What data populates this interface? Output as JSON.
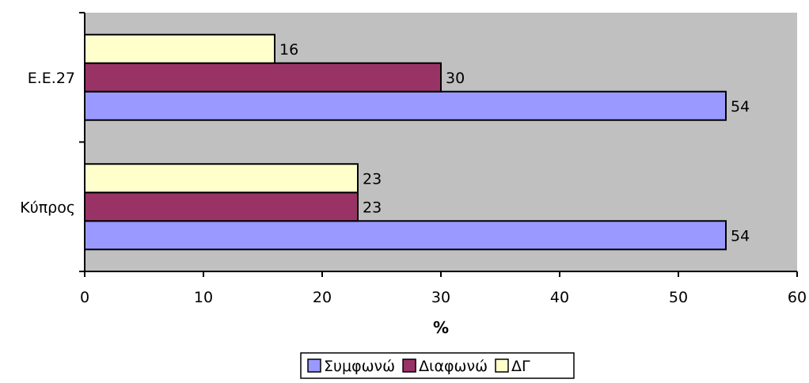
{
  "chart_data": {
    "type": "bar",
    "orientation": "horizontal",
    "categories": [
      "Κύπρος",
      "Ε.Ε.27"
    ],
    "series": [
      {
        "name": "Συμφωνώ",
        "values": [
          54,
          54
        ],
        "color": "#9999ff"
      },
      {
        "name": "Διαφωνώ",
        "values": [
          23,
          30
        ],
        "color": "#993366"
      },
      {
        "name": "ΔΓ",
        "values": [
          23,
          16
        ],
        "color": "#ffffcc"
      }
    ],
    "xlabel": "%",
    "ylabel": "",
    "title": "",
    "xlim": [
      0,
      60
    ],
    "x_ticks": [
      "0",
      "10",
      "20",
      "30",
      "40",
      "50",
      "60"
    ],
    "plot_background": "#c0c0c0",
    "grid": false,
    "legend_position": "bottom"
  }
}
